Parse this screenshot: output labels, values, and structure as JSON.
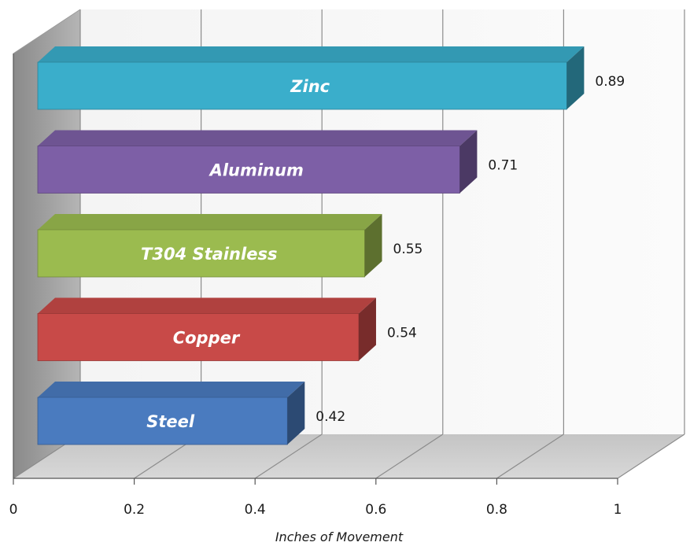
{
  "chart_data": {
    "type": "bar",
    "orientation": "horizontal",
    "three_d": true,
    "categories": [
      "Zinc",
      "Aluminum",
      "T304 Stainless",
      "Copper",
      "Steel"
    ],
    "values": [
      0.89,
      0.71,
      0.55,
      0.54,
      0.42
    ],
    "value_labels": [
      "0.89",
      "0.71",
      "0.55",
      "0.54",
      "0.42"
    ],
    "colors": [
      "#3aaecb",
      "#7d5fa6",
      "#9bbb4f",
      "#c84a48",
      "#4a7bbf"
    ],
    "xlabel": "Inches of Movement",
    "xlim": [
      0,
      1
    ],
    "xticks": [
      0,
      0.2,
      0.4,
      0.6,
      0.8,
      1
    ],
    "xtick_labels": [
      "0",
      "0.2",
      "0.4",
      "0.6",
      "0.8",
      "1"
    ],
    "grid": true,
    "legend": "none"
  }
}
